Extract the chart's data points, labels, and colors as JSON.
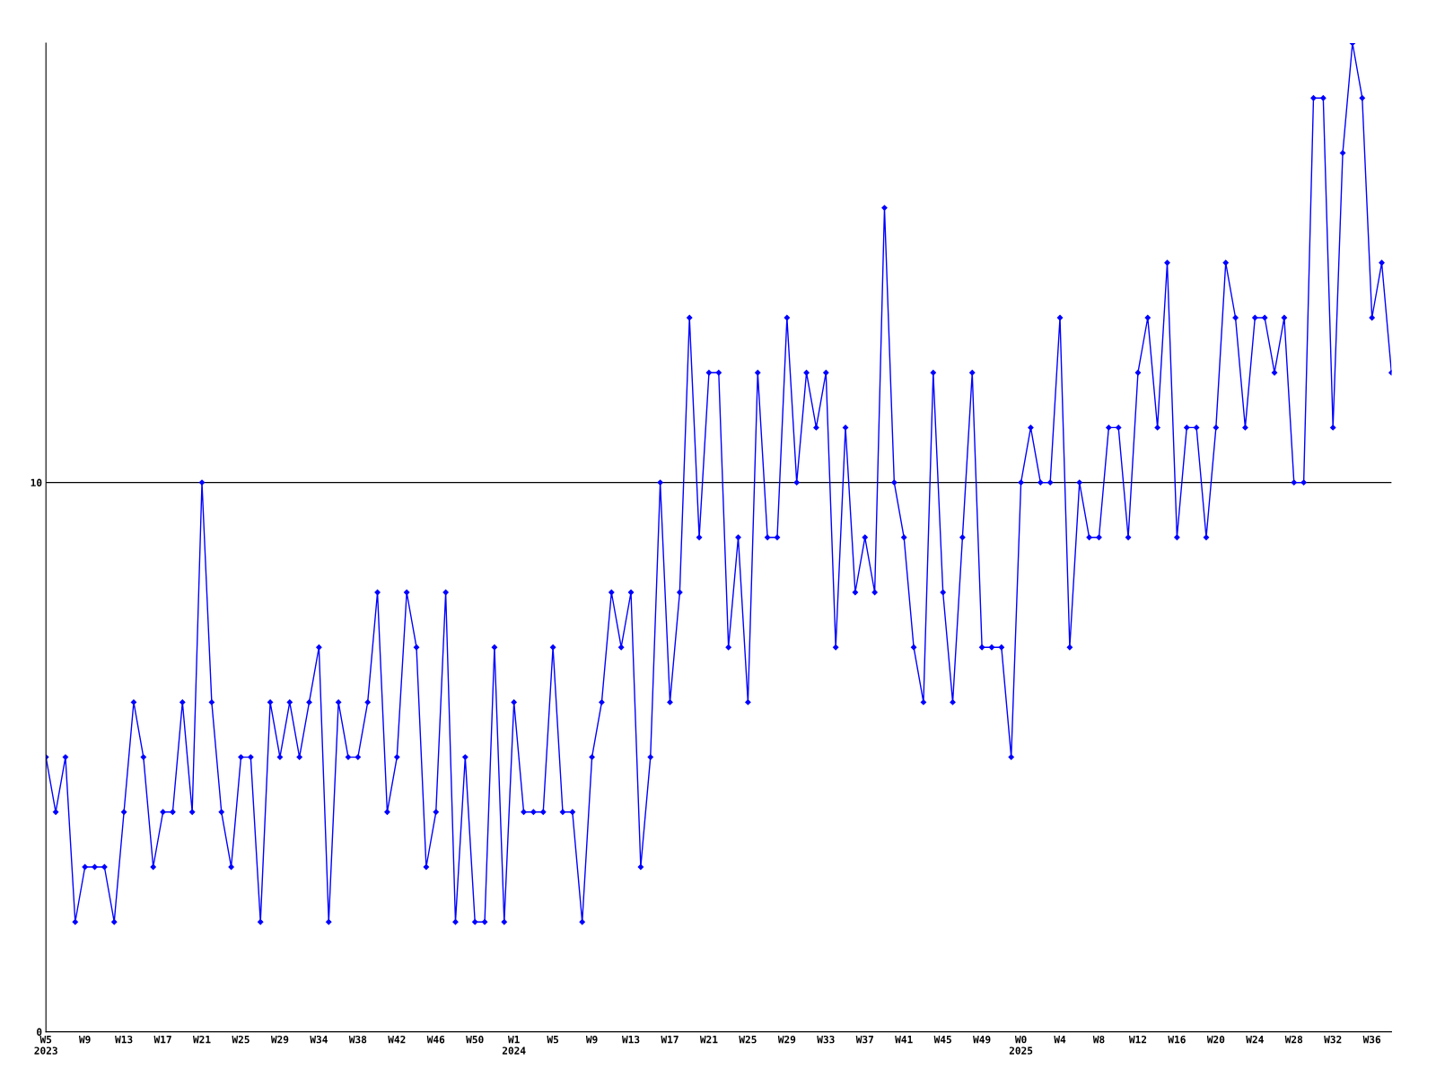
{
  "chart_data": {
    "type": "line",
    "categories": [
      "W5\n2023",
      null,
      null,
      null,
      "W9",
      null,
      null,
      null,
      "W13",
      null,
      null,
      null,
      "W17",
      null,
      null,
      null,
      "W21",
      null,
      null,
      null,
      "W25",
      null,
      null,
      null,
      "W29",
      null,
      null,
      null,
      "W34",
      null,
      null,
      null,
      "W38",
      null,
      null,
      null,
      "W42",
      null,
      null,
      null,
      "W46",
      null,
      null,
      null,
      "W50",
      null,
      null,
      null,
      "W1\n2024",
      null,
      null,
      null,
      "W5",
      null,
      null,
      null,
      "W9",
      null,
      null,
      null,
      "W13",
      null,
      null,
      null,
      "W17",
      null,
      null,
      null,
      "W21",
      null,
      null,
      null,
      "W25",
      null,
      null,
      null,
      "W29",
      null,
      null,
      null,
      "W33",
      null,
      null,
      null,
      "W37",
      null,
      null,
      null,
      "W41",
      null,
      null,
      null,
      "W45",
      null,
      null,
      null,
      "W49",
      null,
      null,
      null,
      "W0\n2025",
      null,
      null,
      null,
      "W4",
      null,
      null,
      null,
      "W8",
      null,
      null,
      null,
      "W12",
      null,
      null,
      null,
      "W16",
      null,
      null,
      null,
      "W20",
      null,
      null,
      null,
      "W24",
      null,
      null,
      null,
      "W28",
      null,
      null,
      null,
      "W32",
      null,
      null,
      null,
      "W36",
      null,
      null
    ],
    "series": [
      {
        "color": "#0000ff",
        "values": [
          5,
          4,
          5,
          2,
          3,
          3,
          3,
          2,
          4,
          6,
          5,
          3,
          4,
          4,
          6,
          4,
          10,
          6,
          4,
          3,
          5,
          5,
          2,
          6,
          5,
          6,
          5,
          6,
          7,
          2,
          6,
          5,
          5,
          6,
          8,
          4,
          5,
          8,
          7,
          3,
          4,
          8,
          2,
          5,
          2,
          2,
          7,
          2,
          6,
          4,
          4,
          4,
          7,
          4,
          4,
          2,
          5,
          6,
          8,
          7,
          8,
          3,
          5,
          10,
          6,
          8,
          13,
          9,
          12,
          12,
          7,
          9,
          6,
          12,
          9,
          9,
          13,
          10,
          12,
          11,
          12,
          7,
          11,
          8,
          9,
          8,
          15,
          10,
          9,
          7,
          6,
          12,
          8,
          6,
          9,
          12,
          7,
          7,
          7,
          5,
          10,
          11,
          10,
          10,
          13,
          7,
          10,
          9,
          9,
          11,
          11,
          9,
          12,
          13,
          11,
          14,
          9,
          11,
          11,
          9,
          11,
          14,
          13,
          11,
          13,
          13,
          12,
          13,
          10,
          10,
          17,
          17,
          11,
          16,
          18,
          17,
          13,
          14,
          12
        ]
      }
    ],
    "ylim": [
      0,
      18
    ],
    "yticks": [
      0,
      10
    ],
    "grid": "y",
    "marker": "diamond",
    "line_style": "solid",
    "legend": false
  }
}
